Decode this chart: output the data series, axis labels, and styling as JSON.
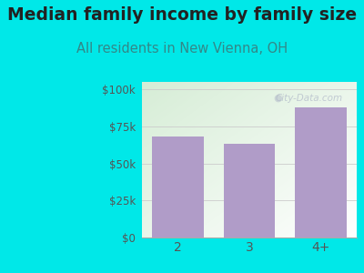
{
  "title": "Median family income by family size",
  "subtitle": "All residents in New Vienna, OH",
  "categories": [
    "2",
    "3",
    "4+"
  ],
  "values": [
    68000,
    63000,
    88000
  ],
  "bar_color": "#b09cc8",
  "background_color": "#00e8e8",
  "yticks": [
    0,
    25000,
    50000,
    75000,
    100000
  ],
  "ytick_labels": [
    "$0",
    "$25k",
    "$50k",
    "$75k",
    "$100k"
  ],
  "ylim": [
    0,
    105000
  ],
  "title_fontsize": 13.5,
  "subtitle_fontsize": 10.5,
  "title_color": "#222222",
  "subtitle_color": "#338888",
  "tick_color": "#555555",
  "watermark": "City-Data.com",
  "grid_color": "#cccccc",
  "axis_line_color": "#aaaaaa"
}
